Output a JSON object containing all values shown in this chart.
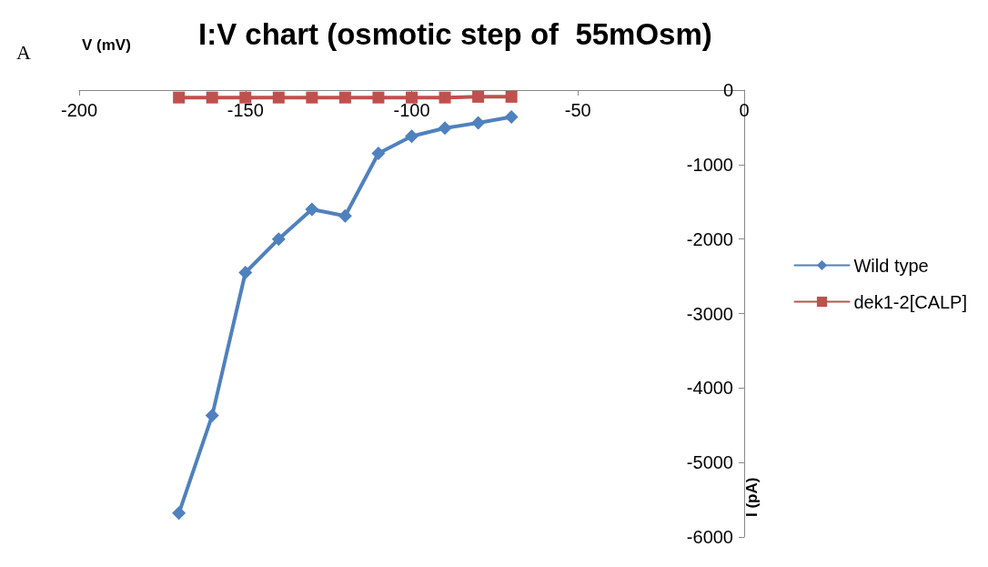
{
  "chart_data": {
    "type": "line",
    "title": "I:V chart (osmotic step of  55mOsm)",
    "xlabel": "V (mV)",
    "ylabel": "I (pA)",
    "annotations": [
      "A"
    ],
    "x": [
      -170,
      -160,
      -150,
      -140,
      -130,
      -120,
      -110,
      -100,
      -90,
      -80,
      -70
    ],
    "series": [
      {
        "name": "Wild type",
        "color": "#4f81bd",
        "marker": "diamond",
        "values": [
          -5680,
          -4370,
          -2450,
          -2000,
          -1600,
          -1690,
          -850,
          -620,
          -510,
          -440,
          -360
        ]
      },
      {
        "name": "dek1-2[CALP]",
        "color": "#c0504d",
        "marker": "square",
        "values": [
          -100,
          -100,
          -100,
          -100,
          -100,
          -100,
          -100,
          -100,
          -100,
          -90,
          -90
        ]
      }
    ],
    "xlim": [
      -200,
      0
    ],
    "xticks": [
      -200,
      -150,
      -100,
      -50,
      0
    ],
    "ylim": [
      -6000,
      0
    ],
    "yticks": [
      -6000,
      -5000,
      -4000,
      -3000,
      -2000,
      -1000,
      0
    ],
    "grid": false,
    "legend": "right"
  }
}
